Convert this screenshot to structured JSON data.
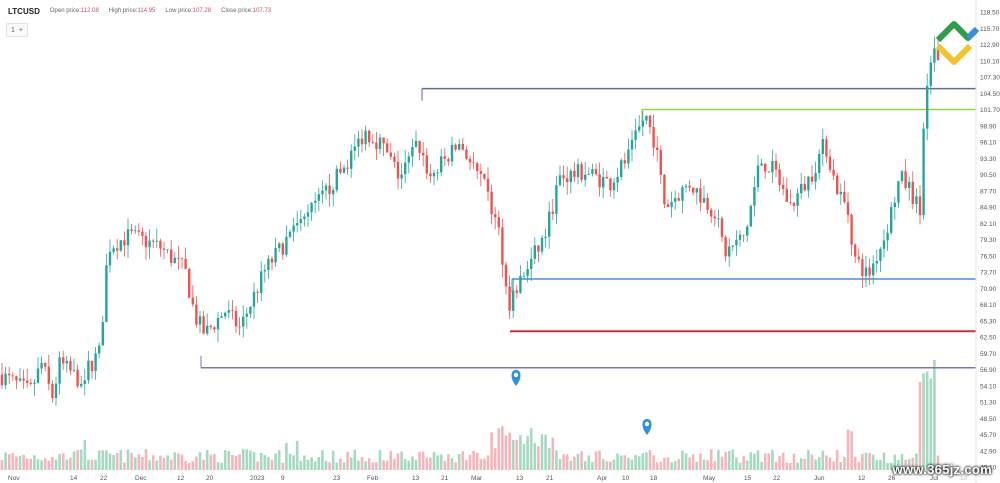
{
  "header": {
    "symbol": "LTCUSD",
    "open_label": "Open price:",
    "open_value": "112.08",
    "high_label": "High price:",
    "high_value": "114.95",
    "low_label": "Low price:",
    "low_value": "107.28",
    "close_label": "Close price:",
    "close_value": "107.73"
  },
  "chip": {
    "count": "1",
    "plus": "+"
  },
  "chart_data": {
    "type": "candlestick",
    "y_ticks": [
      "118.50",
      "115.70",
      "112.90",
      "110.10",
      "107.30",
      "104.50",
      "101.70",
      "98.90",
      "96.10",
      "93.30",
      "90.50",
      "87.70",
      "84.90",
      "82.10",
      "79.30",
      "76.50",
      "73.70",
      "70.90",
      "68.10",
      "65.30",
      "62.50",
      "59.70",
      "56.90",
      "54.10",
      "51.30",
      "48.50",
      "45.70",
      "42.90",
      "40.10"
    ],
    "x_ticks": [
      "Nov",
      "14",
      "22",
      "Dec",
      "12",
      "20",
      "2023",
      "9",
      "23",
      "Feb",
      "13",
      "21",
      "Mar",
      "13",
      "21",
      "Apr",
      "10",
      "18",
      "May",
      "15",
      "22",
      "Jun",
      "12",
      "26",
      "Jul",
      "10"
    ],
    "x_ticks_faded": [
      "",
      "",
      "",
      "",
      "",
      "",
      "",
      "",
      "",
      "",
      "",
      "",
      "",
      "",
      "",
      "",
      "",
      "",
      "",
      "",
      "",
      "",
      "",
      "",
      "",
      "faded"
    ],
    "ylim": [
      40.1,
      118.5
    ],
    "levels": [
      {
        "value": 105.3,
        "color": "#5a6ea0"
      },
      {
        "value": 101.7,
        "color": "#8ed64c"
      },
      {
        "value": 72.5,
        "color": "#4a8ed8"
      },
      {
        "value": 63.5,
        "color": "#c8323c"
      },
      {
        "value": 57.2,
        "color": "#7b74b8"
      }
    ],
    "up_color": "#26a69a",
    "down_color": "#ef5350",
    "volume_up_color": "#a5d9c1",
    "volume_down_color": "#f4b6bb"
  },
  "watermark": {
    "text": "www.365jz.com"
  },
  "icons": {
    "markers": [
      "map-pin-icon",
      "map-pin-icon"
    ],
    "logo": "brand-logo-icon"
  }
}
